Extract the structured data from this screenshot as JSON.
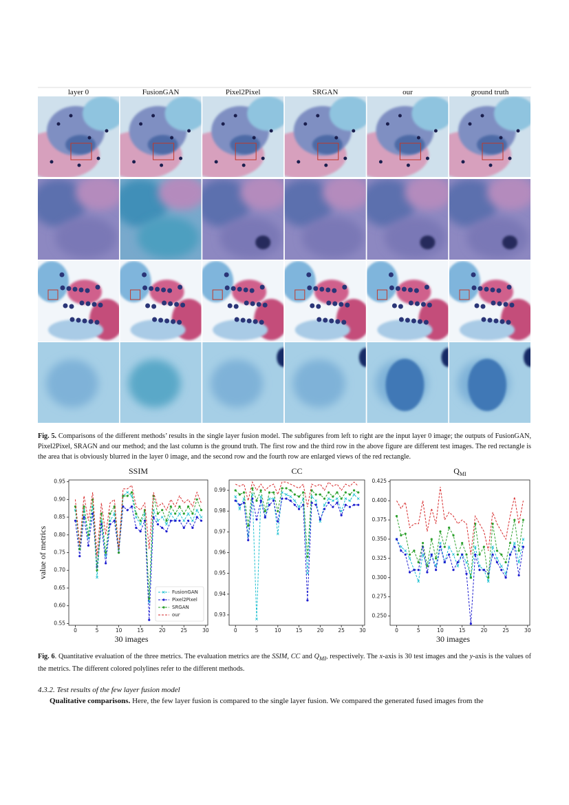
{
  "figure5": {
    "column_labels": [
      "layer 0",
      "FusionGAN",
      "Pixel2Pixel",
      "SRGAN",
      "our",
      "ground truth"
    ],
    "caption_label": "Fig. 5.",
    "caption": " Comparisons of the different methods’ results in the single layer fusion model. The subfigures from left to right are the input layer 0 image; the outputs of FusionGAN, Pixel2Pixel, SRAGN and our method; and the last column is the ground truth. The first row and the third row in the above figure are different test images. The red rectangle is the area that is obviously blurred in the layer 0 image, and the second row and the fourth row are enlarged views of the red rectangle."
  },
  "chart_data": [
    {
      "type": "line",
      "title": "SSIM",
      "ylabel": "value of metrics",
      "xlabel": "30 images",
      "legend": "lower right",
      "x": [
        0,
        1,
        2,
        3,
        4,
        5,
        6,
        7,
        8,
        9,
        10,
        11,
        12,
        13,
        14,
        15,
        16,
        17,
        18,
        19,
        20,
        21,
        22,
        23,
        24,
        25,
        26,
        27,
        28,
        29
      ],
      "xlim": [
        -1.5,
        30.5
      ],
      "xticks": [
        0,
        5,
        10,
        15,
        20,
        25,
        30
      ],
      "ylim": [
        0.545,
        0.955
      ],
      "yticks": [
        0.55,
        {
          "value": 0.6,
          "label": "0.60"
        },
        0.65,
        {
          "value": 0.7,
          "label": "0.70"
        },
        0.75,
        {
          "value": 0.8,
          "label": "0.80"
        },
        0.85,
        {
          "value": 0.9,
          "label": "0.90"
        },
        0.95
      ],
      "series": [
        {
          "name": "FusionGAN",
          "color": "#17becf",
          "marker": "x",
          "values": [
            0.87,
            0.76,
            0.87,
            0.79,
            0.88,
            0.68,
            0.84,
            0.74,
            0.84,
            0.86,
            0.76,
            0.91,
            0.92,
            0.91,
            0.85,
            0.83,
            0.86,
            0.61,
            0.87,
            0.84,
            0.85,
            0.83,
            0.86,
            0.84,
            0.86,
            0.84,
            0.86,
            0.84,
            0.87,
            0.85
          ]
        },
        {
          "name": "Pixel2Pixel",
          "color": "#1f1fd0",
          "marker": "dot",
          "values": [
            0.84,
            0.74,
            0.85,
            0.77,
            0.86,
            0.71,
            0.83,
            0.72,
            0.83,
            0.84,
            0.75,
            0.88,
            0.87,
            0.88,
            0.82,
            0.81,
            0.84,
            0.56,
            0.85,
            0.83,
            0.82,
            0.81,
            0.84,
            0.84,
            0.84,
            0.82,
            0.84,
            0.82,
            0.85,
            0.84
          ]
        },
        {
          "name": "SRGAN",
          "color": "#2ca02c",
          "marker": "dot",
          "values": [
            0.88,
            0.76,
            0.88,
            0.8,
            0.9,
            0.7,
            0.86,
            0.75,
            0.86,
            0.88,
            0.75,
            0.91,
            0.91,
            0.92,
            0.86,
            0.84,
            0.87,
            0.62,
            0.91,
            0.86,
            0.87,
            0.84,
            0.88,
            0.86,
            0.88,
            0.86,
            0.88,
            0.86,
            0.9,
            0.87
          ]
        },
        {
          "name": "our",
          "color": "#d62728",
          "marker": "none",
          "values": [
            0.9,
            0.77,
            0.91,
            0.84,
            0.92,
            0.74,
            0.89,
            0.8,
            0.89,
            0.9,
            0.76,
            0.93,
            0.93,
            0.94,
            0.88,
            0.87,
            0.89,
            0.76,
            0.92,
            0.88,
            0.89,
            0.87,
            0.9,
            0.88,
            0.91,
            0.89,
            0.9,
            0.88,
            0.92,
            0.89
          ]
        }
      ]
    },
    {
      "type": "line",
      "title": "CC",
      "x": [
        0,
        1,
        2,
        3,
        4,
        5,
        6,
        7,
        8,
        9,
        10,
        11,
        12,
        13,
        14,
        15,
        16,
        17,
        18,
        19,
        20,
        21,
        22,
        23,
        24,
        25,
        26,
        27,
        28,
        29
      ],
      "xlim": [
        -1.5,
        30.5
      ],
      "xticks": [
        0,
        5,
        10,
        15,
        20,
        25,
        30
      ],
      "ylim": [
        0.925,
        0.995
      ],
      "yticks": [
        0.93,
        0.94,
        0.95,
        0.96,
        0.97,
        0.98,
        0.99
      ],
      "series": [
        {
          "color": "#17becf",
          "marker": "x",
          "values": [
            0.987,
            0.981,
            0.986,
            0.968,
            0.988,
            0.928,
            0.987,
            0.977,
            0.986,
            0.986,
            0.969,
            0.989,
            0.988,
            0.987,
            0.985,
            0.982,
            0.986,
            0.95,
            0.987,
            0.985,
            0.975,
            0.983,
            0.986,
            0.985,
            0.986,
            0.98,
            0.986,
            0.985,
            0.988,
            0.986
          ]
        },
        {
          "color": "#1f1fd0",
          "marker": "dot",
          "values": [
            0.985,
            0.983,
            0.984,
            0.966,
            0.986,
            0.976,
            0.985,
            0.977,
            0.983,
            0.985,
            0.975,
            0.986,
            0.986,
            0.985,
            0.983,
            0.981,
            0.983,
            0.937,
            0.984,
            0.983,
            0.976,
            0.981,
            0.984,
            0.982,
            0.984,
            0.978,
            0.983,
            0.982,
            0.983,
            0.983
          ]
        },
        {
          "color": "#2ca02c",
          "marker": "dot",
          "values": [
            0.99,
            0.988,
            0.989,
            0.973,
            0.991,
            0.985,
            0.99,
            0.98,
            0.989,
            0.989,
            0.98,
            0.991,
            0.991,
            0.99,
            0.988,
            0.987,
            0.989,
            0.958,
            0.99,
            0.988,
            0.988,
            0.986,
            0.989,
            0.987,
            0.989,
            0.986,
            0.989,
            0.988,
            0.99,
            0.989
          ]
        },
        {
          "color": "#d62728",
          "marker": "none",
          "values": [
            0.993,
            0.992,
            0.993,
            0.985,
            0.994,
            0.99,
            0.993,
            0.99,
            0.992,
            0.993,
            0.988,
            0.994,
            0.994,
            0.993,
            0.992,
            0.991,
            0.993,
            0.982,
            0.993,
            0.992,
            0.993,
            0.99,
            0.994,
            0.992,
            0.993,
            0.99,
            0.993,
            0.992,
            0.994,
            0.992
          ]
        }
      ]
    },
    {
      "type": "line",
      "title": "Q",
      "title_subscript": "MI",
      "xlabel": "30 images",
      "x": [
        0,
        1,
        2,
        3,
        4,
        5,
        6,
        7,
        8,
        9,
        10,
        11,
        12,
        13,
        14,
        15,
        16,
        17,
        18,
        19,
        20,
        21,
        22,
        23,
        24,
        25,
        26,
        27,
        28,
        29
      ],
      "xlim": [
        -1.5,
        30.5
      ],
      "xticks": [
        0,
        5,
        10,
        15,
        20,
        25,
        30
      ],
      "ylim": [
        0.238,
        0.427
      ],
      "yticks": [
        {
          "value": 0.25,
          "label": "0.250"
        },
        0.275,
        {
          "value": 0.3,
          "label": "0.300"
        },
        0.325,
        {
          "value": 0.35,
          "label": "0.350"
        },
        0.375,
        {
          "value": 0.4,
          "label": "0.400"
        },
        0.425
      ],
      "series": [
        {
          "color": "#17becf",
          "marker": "x",
          "values": [
            0.35,
            0.34,
            0.335,
            0.325,
            0.31,
            0.295,
            0.33,
            0.315,
            0.33,
            0.315,
            0.345,
            0.32,
            0.34,
            0.33,
            0.315,
            0.33,
            0.32,
            0.3,
            0.34,
            0.315,
            0.31,
            0.295,
            0.34,
            0.325,
            0.315,
            0.305,
            0.33,
            0.345,
            0.32,
            0.35
          ]
        },
        {
          "color": "#1f1fd0",
          "marker": "dot",
          "values": [
            0.35,
            0.335,
            0.33,
            0.307,
            0.31,
            0.31,
            0.34,
            0.307,
            0.33,
            0.31,
            0.34,
            0.32,
            0.33,
            0.31,
            0.32,
            0.33,
            0.305,
            0.24,
            0.33,
            0.31,
            0.31,
            0.305,
            0.33,
            0.32,
            0.31,
            0.3,
            0.33,
            0.34,
            0.303,
            0.34
          ]
        },
        {
          "color": "#2ca02c",
          "marker": "dot",
          "values": [
            0.38,
            0.355,
            0.357,
            0.33,
            0.335,
            0.32,
            0.345,
            0.315,
            0.35,
            0.325,
            0.36,
            0.34,
            0.365,
            0.355,
            0.33,
            0.345,
            0.33,
            0.3,
            0.37,
            0.33,
            0.34,
            0.3,
            0.37,
            0.335,
            0.33,
            0.32,
            0.345,
            0.375,
            0.335,
            0.375
          ]
        },
        {
          "color": "#d62728",
          "marker": "none",
          "values": [
            0.4,
            0.39,
            0.398,
            0.365,
            0.37,
            0.37,
            0.4,
            0.36,
            0.39,
            0.37,
            0.418,
            0.375,
            0.385,
            0.38,
            0.37,
            0.375,
            0.37,
            0.33,
            0.38,
            0.37,
            0.36,
            0.335,
            0.385,
            0.37,
            0.36,
            0.35,
            0.38,
            0.405,
            0.37,
            0.4
          ]
        }
      ]
    }
  ],
  "figure6": {
    "caption": [
      "Fig. 6",
      ". Quantitative evaluation of the three metrics. The evaluation metrics are the ",
      "SSIM",
      ", ",
      "CC",
      " and ",
      "Q",
      "MI",
      ", respectively. The ",
      "x",
      "-axis is 30 test images and the ",
      "y",
      "-axis is the values of the metrics. The different colored polylines refer to the different methods."
    ]
  },
  "section": {
    "heading": "4.3.2. Test results of the few layer fusion model",
    "lead": "Qualitative comparisons.",
    "text": " Here, the few layer fusion is compared to the single layer fusion. We compared the generated fused images from the"
  }
}
